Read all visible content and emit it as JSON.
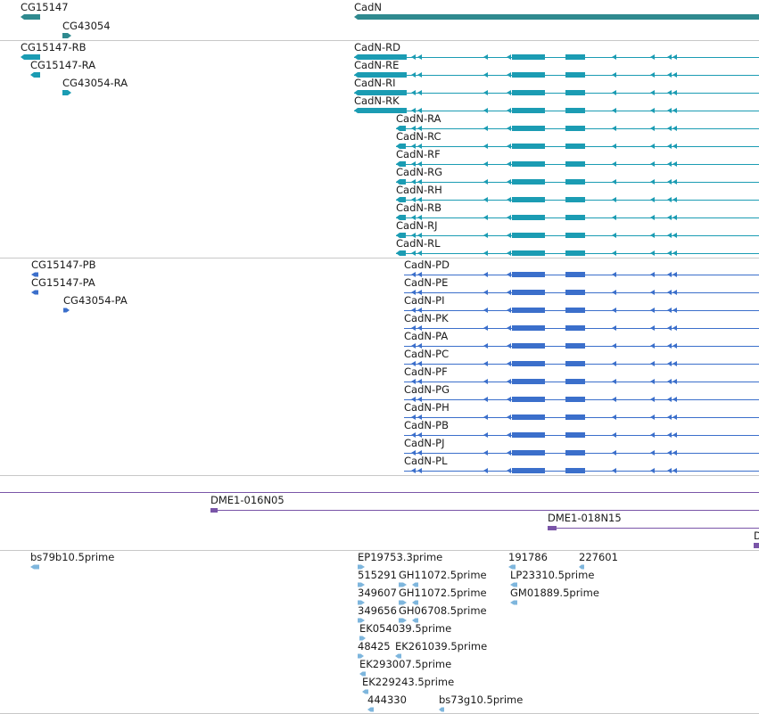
{
  "colors": {
    "gene": "#2f8a8f",
    "transcript": "#1b9cb3",
    "protein": "#3b6fcb",
    "clone": "#7a55a8",
    "est": "#7eb6dd",
    "separator": "#c8c8c8"
  },
  "tracks": {
    "genes": [
      {
        "label": "CG15147",
        "strand": "-"
      },
      {
        "label": "CG43054",
        "strand": "+"
      },
      {
        "label": "CadN",
        "strand": "-"
      }
    ],
    "transcripts": [
      {
        "label": "CG15147-RB"
      },
      {
        "label": "CG15147-RA"
      },
      {
        "label": "CG43054-RA"
      },
      {
        "label": "CadN-RD"
      },
      {
        "label": "CadN-RE"
      },
      {
        "label": "CadN-RI"
      },
      {
        "label": "CadN-RK"
      },
      {
        "label": "CadN-RA"
      },
      {
        "label": "CadN-RC"
      },
      {
        "label": "CadN-RF"
      },
      {
        "label": "CadN-RG"
      },
      {
        "label": "CadN-RH"
      },
      {
        "label": "CadN-RB"
      },
      {
        "label": "CadN-RJ"
      },
      {
        "label": "CadN-RL"
      }
    ],
    "proteins": [
      {
        "label": "CG15147-PB"
      },
      {
        "label": "CG15147-PA"
      },
      {
        "label": "CG43054-PA"
      },
      {
        "label": "CadN-PD"
      },
      {
        "label": "CadN-PE"
      },
      {
        "label": "CadN-PI"
      },
      {
        "label": "CadN-PK"
      },
      {
        "label": "CadN-PA"
      },
      {
        "label": "CadN-PC"
      },
      {
        "label": "CadN-PF"
      },
      {
        "label": "CadN-PG"
      },
      {
        "label": "CadN-PH"
      },
      {
        "label": "CadN-PB"
      },
      {
        "label": "CadN-PJ"
      },
      {
        "label": "CadN-PL"
      }
    ],
    "clones": [
      {
        "label": "DME1-016N05"
      },
      {
        "label": "DME1-018N15"
      },
      {
        "label": "D"
      }
    ],
    "ests": [
      {
        "label": "bs79b10.5prime"
      },
      {
        "label": "EP19753.3prime"
      },
      {
        "label": "191786"
      },
      {
        "label": "227601"
      },
      {
        "label": "515291"
      },
      {
        "label": "GH11072.5prime"
      },
      {
        "label": "LP23310.5prime"
      },
      {
        "label": "349607"
      },
      {
        "label": "GH11072.5prime"
      },
      {
        "label": "GM01889.5prime"
      },
      {
        "label": "349656"
      },
      {
        "label": "GH06708.5prime"
      },
      {
        "label": "EK054039.5prime"
      },
      {
        "label": "48425"
      },
      {
        "label": "EK261039.5prime"
      },
      {
        "label": "EK293007.5prime"
      },
      {
        "label": "EK229243.5prime"
      },
      {
        "label": "444330"
      },
      {
        "label": "bs73g10.5prime"
      }
    ]
  }
}
